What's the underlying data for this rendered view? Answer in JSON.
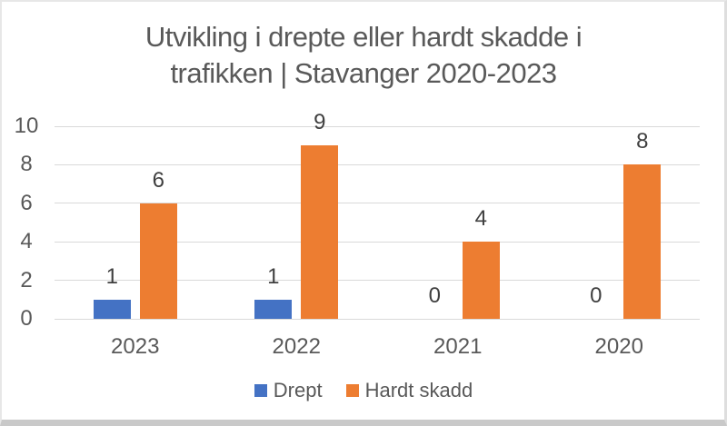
{
  "title": {
    "line1": "Utvikling i drepte eller hardt skadde i",
    "line2": "trafikken | Stavanger 2020-2023"
  },
  "colors": {
    "drept": "#4472C4",
    "hardt_skadd": "#ED7D31",
    "gridline": "#d9d9d9",
    "text": "#595959",
    "data_label": "#3f3f3f"
  },
  "chart_data": {
    "type": "bar",
    "title": "Utvikling i drepte eller hardt skadde i trafikken | Stavanger 2020-2023",
    "categories": [
      "2023",
      "2022",
      "2021",
      "2020"
    ],
    "series": [
      {
        "name": "Drept",
        "color": "#4472C4",
        "values": [
          1,
          1,
          0,
          0
        ]
      },
      {
        "name": "Hardt skadd",
        "color": "#ED7D31",
        "values": [
          6,
          9,
          4,
          8
        ]
      }
    ],
    "xlabel": "",
    "ylabel": "",
    "ylim": [
      0,
      10
    ],
    "yticks": [
      0,
      2,
      4,
      6,
      8,
      10
    ],
    "grid": true,
    "legend_position": "bottom",
    "data_labels": true
  }
}
